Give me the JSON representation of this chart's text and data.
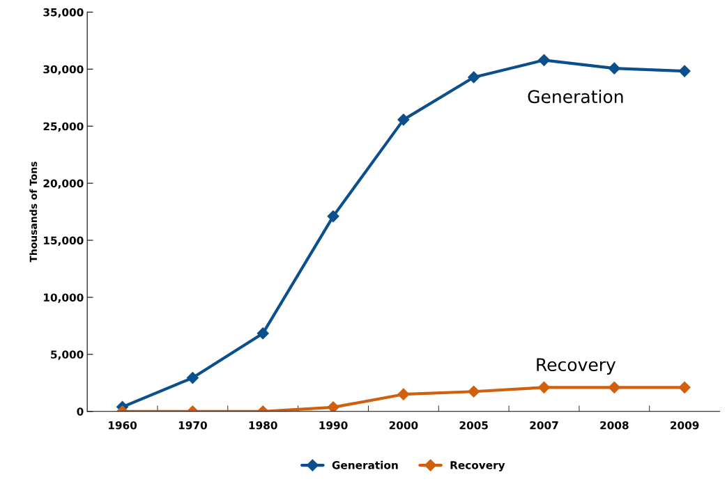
{
  "chart_data": {
    "type": "line",
    "ylabel": "Thousands of Tons",
    "categories": [
      "1960",
      "1970",
      "1980",
      "1990",
      "2000",
      "2005",
      "2007",
      "2008",
      "2009"
    ],
    "series": [
      {
        "name": "Generation",
        "color": "#0b4f8c",
        "values": [
          390,
          2940,
          6840,
          17100,
          25570,
          29290,
          30790,
          30070,
          29830
        ]
      },
      {
        "name": "Recovery",
        "color": "#d0600e",
        "values": [
          0,
          0,
          0,
          360,
          1500,
          1740,
          2100,
          2100,
          2100
        ]
      }
    ],
    "ylim": [
      0,
      35000
    ],
    "yticks": [
      {
        "value": 0,
        "label": "0"
      },
      {
        "value": 5000,
        "label": "5,000"
      },
      {
        "value": 10000,
        "label": "10,000"
      },
      {
        "value": 15000,
        "label": "15,000"
      },
      {
        "value": 20000,
        "label": "20,000"
      },
      {
        "value": 25000,
        "label": "25,000"
      },
      {
        "value": 30000,
        "label": "30,000"
      },
      {
        "value": 35000,
        "label": "35,000"
      }
    ],
    "annotations": [
      "Generation",
      "Recovery"
    ],
    "marker": "diamond",
    "line_style": "solid",
    "grid": false,
    "legend": "bottom"
  }
}
